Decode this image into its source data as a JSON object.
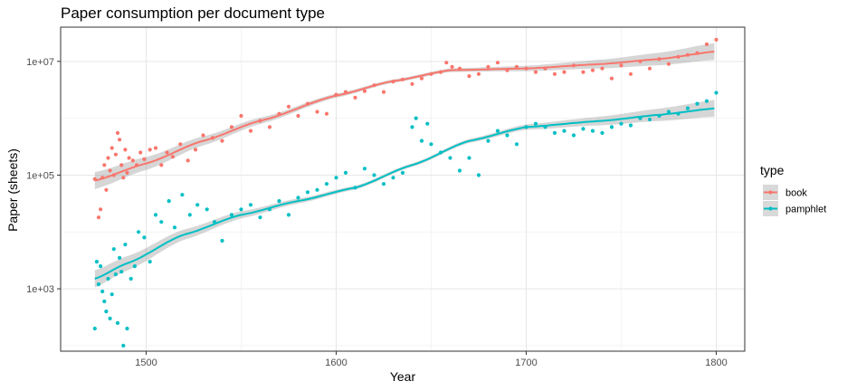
{
  "chart_data": {
    "type": "scatter",
    "title": "Paper consumption per document type",
    "xlabel": "Year",
    "ylabel": "Paper (sheets)",
    "xlim": [
      1455,
      1815
    ],
    "ylim": [
      80,
      40000000
    ],
    "y_scale": "log10",
    "x_ticks": [
      1500,
      1600,
      1700,
      1800
    ],
    "x_tick_labels": [
      "1500",
      "1600",
      "1700",
      "1800"
    ],
    "y_ticks": [
      1000,
      100000,
      10000000
    ],
    "y_tick_labels": [
      "1e+03",
      "1e+05",
      "1e+07"
    ],
    "grid": true,
    "legend": {
      "title": "type",
      "position": "right"
    },
    "series": [
      {
        "name": "book",
        "color": "#F8766D",
        "smooth_x": [
          1473,
          1500,
          1530,
          1560,
          1600,
          1630,
          1660,
          1700,
          1740,
          1770,
          1800
        ],
        "smooth_y": [
          80000,
          160000,
          400000,
          900000,
          2500000,
          4500000,
          7000000,
          7500000,
          9000000,
          11000000,
          15000000
        ],
        "points_x": [
          1473,
          1475,
          1476,
          1477,
          1478,
          1479,
          1480,
          1481,
          1482,
          1483,
          1484,
          1485,
          1486,
          1487,
          1488,
          1489,
          1490,
          1491,
          1493,
          1495,
          1497,
          1499,
          1502,
          1505,
          1508,
          1511,
          1514,
          1518,
          1522,
          1526,
          1530,
          1535,
          1540,
          1545,
          1550,
          1555,
          1560,
          1565,
          1570,
          1575,
          1580,
          1585,
          1590,
          1595,
          1600,
          1605,
          1610,
          1615,
          1620,
          1625,
          1630,
          1635,
          1640,
          1645,
          1650,
          1655,
          1658,
          1661,
          1665,
          1670,
          1675,
          1680,
          1685,
          1690,
          1695,
          1700,
          1705,
          1710,
          1715,
          1720,
          1725,
          1730,
          1735,
          1740,
          1745,
          1750,
          1755,
          1760,
          1765,
          1770,
          1775,
          1780,
          1785,
          1790,
          1795,
          1800
        ],
        "points_y": [
          85000,
          18000,
          25000,
          90000,
          150000,
          55000,
          200000,
          120000,
          300000,
          100000,
          230000,
          550000,
          420000,
          150000,
          90000,
          280000,
          110000,
          200000,
          180000,
          150000,
          250000,
          190000,
          280000,
          300000,
          150000,
          250000,
          210000,
          350000,
          180000,
          280000,
          500000,
          450000,
          400000,
          700000,
          1100000,
          600000,
          900000,
          700000,
          1200000,
          1600000,
          1100000,
          1800000,
          1300000,
          1200000,
          2600000,
          2900000,
          2300000,
          3000000,
          3800000,
          2900000,
          4400000,
          4800000,
          4000000,
          5000000,
          6000000,
          6500000,
          9500000,
          8000000,
          7500000,
          5500000,
          6000000,
          8000000,
          9500000,
          7000000,
          8000000,
          7500000,
          6500000,
          7500000,
          6000000,
          6500000,
          8500000,
          6500000,
          7000000,
          7500000,
          5000000,
          8500000,
          6000000,
          10000000,
          7500000,
          11000000,
          9000000,
          12000000,
          13000000,
          14000000,
          20000000,
          24000000
        ]
      },
      {
        "name": "pamphlet",
        "color": "#00BFC4",
        "smooth_x": [
          1473,
          1490,
          1520,
          1550,
          1580,
          1610,
          1640,
          1670,
          1700,
          1740,
          1770,
          1800
        ],
        "smooth_y": [
          1500,
          2800,
          9000,
          20000,
          35000,
          60000,
          150000,
          400000,
          700000,
          900000,
          1150000,
          1500000
        ],
        "points_x": [
          1473,
          1474,
          1475,
          1476,
          1477,
          1478,
          1479,
          1480,
          1481,
          1482,
          1483,
          1484,
          1485,
          1486,
          1487,
          1488,
          1489,
          1490,
          1492,
          1494,
          1496,
          1499,
          1502,
          1505,
          1508,
          1512,
          1515,
          1519,
          1523,
          1527,
          1532,
          1536,
          1540,
          1545,
          1550,
          1555,
          1560,
          1565,
          1570,
          1575,
          1580,
          1585,
          1590,
          1595,
          1600,
          1605,
          1610,
          1615,
          1620,
          1625,
          1630,
          1635,
          1640,
          1642,
          1645,
          1648,
          1650,
          1655,
          1660,
          1665,
          1670,
          1675,
          1680,
          1685,
          1690,
          1695,
          1700,
          1705,
          1710,
          1715,
          1720,
          1725,
          1730,
          1735,
          1740,
          1745,
          1750,
          1755,
          1760,
          1765,
          1770,
          1775,
          1780,
          1785,
          1790,
          1795,
          1800
        ],
        "points_y": [
          200,
          3000,
          1200,
          2500,
          900,
          600,
          400,
          1500,
          300,
          800,
          5000,
          1800,
          250,
          3500,
          2000,
          100,
          6000,
          200,
          1500,
          2500,
          10000,
          8000,
          3000,
          20000,
          15000,
          35000,
          12000,
          45000,
          20000,
          30000,
          25000,
          15000,
          7000,
          20000,
          25000,
          30000,
          18000,
          25000,
          35000,
          20000,
          40000,
          50000,
          55000,
          70000,
          90000,
          110000,
          60000,
          130000,
          100000,
          70000,
          90000,
          110000,
          700000,
          1000000,
          400000,
          800000,
          350000,
          250000,
          200000,
          120000,
          200000,
          100000,
          400000,
          600000,
          500000,
          350000,
          700000,
          800000,
          700000,
          550000,
          600000,
          500000,
          650000,
          600000,
          550000,
          700000,
          800000,
          750000,
          1000000,
          950000,
          1100000,
          1300000,
          1200000,
          1500000,
          1800000,
          2000000,
          2800000
        ]
      }
    ]
  }
}
